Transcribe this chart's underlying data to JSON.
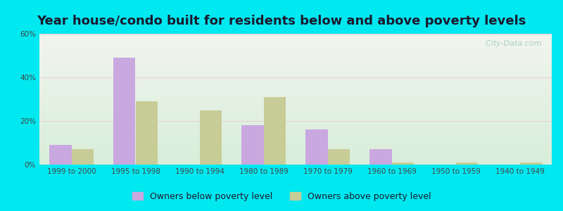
{
  "title": "Year house/condo built for residents below and above poverty levels",
  "categories": [
    "1999 to 2000",
    "1995 to 1998",
    "1990 to 1994",
    "1980 to 1989",
    "1970 to 1979",
    "1960 to 1969",
    "1950 to 1959",
    "1940 to 1949"
  ],
  "below_poverty": [
    9,
    49,
    0,
    18,
    16,
    7,
    0,
    0
  ],
  "above_poverty": [
    7,
    29,
    25,
    31,
    7,
    1,
    1,
    1
  ],
  "below_color": "#c9a8e0",
  "above_color": "#c8cc96",
  "bg_color_outer": "#00e8f0",
  "bg_grad_top": "#d8eeda",
  "bg_grad_bottom": "#f2f5ee",
  "ylim": [
    0,
    60
  ],
  "yticks": [
    0,
    20,
    40,
    60
  ],
  "ytick_labels": [
    "0%",
    "20%",
    "40%",
    "60%"
  ],
  "legend_below": "Owners below poverty level",
  "legend_above": "Owners above poverty level",
  "bar_width": 0.35,
  "title_fontsize": 13,
  "tick_fontsize": 7.5,
  "legend_fontsize": 9
}
